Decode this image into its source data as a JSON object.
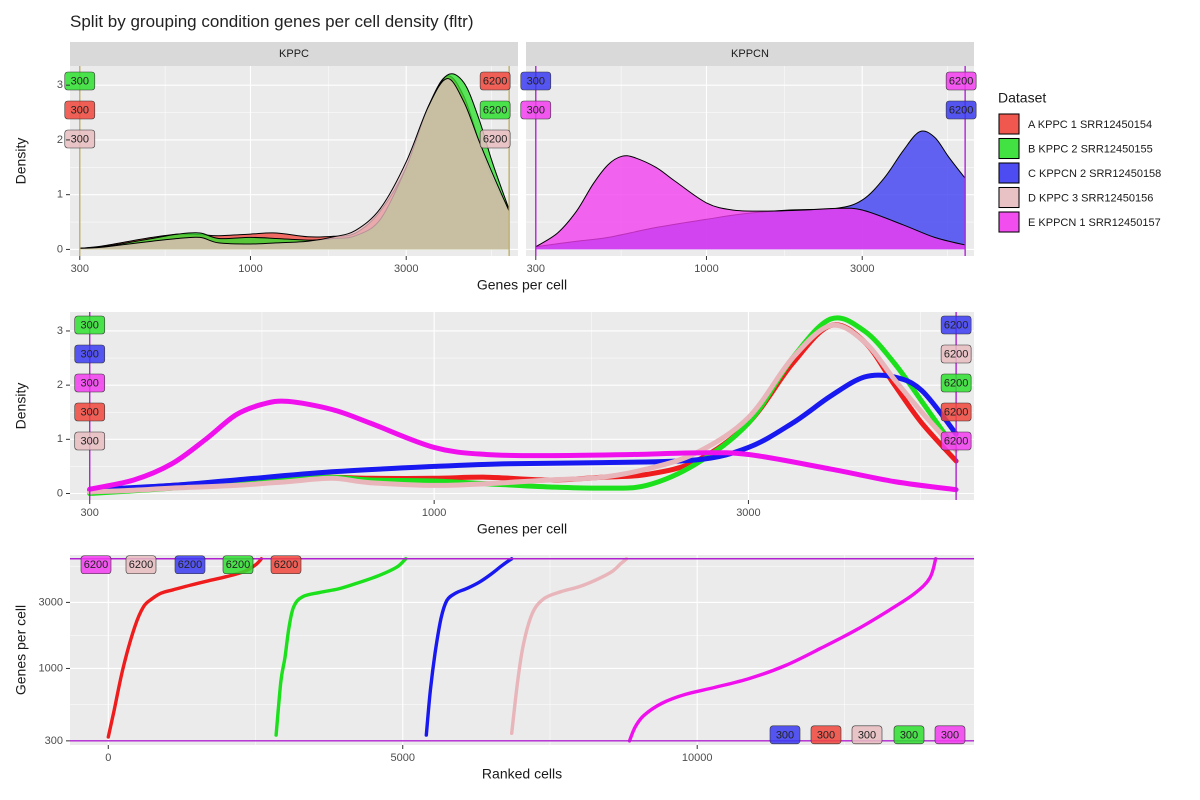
{
  "title": "Split by grouping condition genes per cell density (fltr)",
  "legend": {
    "title": "Dataset",
    "placement": "right",
    "entries": [
      {
        "name": "A KPPC 1 SRR12450154",
        "color": "#F8766D"
      },
      {
        "name": "B KPPC 2 SRR12450155",
        "color": "#00BA38"
      },
      {
        "name": "C KPPCN 2 SRR12450158",
        "color": "#619CFF"
      },
      {
        "name": "D KPPC 3 SRR12450156",
        "color": "#E8C0C4"
      },
      {
        "name": "E KPPCN 1 SRR12450157",
        "color": "#F564E3"
      }
    ]
  },
  "colors": {
    "A": "#F0463C",
    "B": "#2EE02E",
    "C": "#3A3AF2",
    "D": "#E8BDC1",
    "E": "#F23CEE",
    "A_line": "#EE1C1C",
    "B_line": "#1BE01B",
    "C_line": "#1818F0",
    "D_line": "#E8B5BA",
    "E_line": "#F010EE",
    "threshold_kppc": "#BDB06A",
    "threshold_kppcn": "#B023D8",
    "threshold_mid": "#B020D0"
  },
  "chart_data": [
    {
      "type": "area",
      "facets": [
        "KPPC",
        "KPPCN"
      ],
      "x_scale": "log10",
      "xlim": [
        280,
        6600
      ],
      "ylim": [
        -0.12,
        3.35
      ],
      "x_ticks": [
        300,
        1000,
        3000
      ],
      "x_tick_labels": [
        "300",
        "1000",
        "3000"
      ],
      "y_ticks": [
        0,
        1,
        2,
        3
      ],
      "y_tick_labels": [
        "0",
        "1",
        "2",
        "3"
      ],
      "xlabel": "Genes per cell",
      "ylabel": "Density",
      "thresholds": [
        300,
        6200
      ],
      "threshold_labels": [
        "300",
        "6200"
      ],
      "series": [
        {
          "name": "A KPPC 1 SRR12450154",
          "facet": "KPPC",
          "x": [
            300,
            350,
            400,
            500,
            600,
            700,
            800,
            1000,
            1200,
            1500,
            1800,
            2100,
            2500,
            3000,
            3500,
            4000,
            4500,
            5000,
            5500,
            6200
          ],
          "y": [
            0.02,
            0.06,
            0.12,
            0.22,
            0.28,
            0.27,
            0.25,
            0.28,
            0.3,
            0.23,
            0.24,
            0.3,
            0.7,
            1.5,
            2.6,
            3.17,
            2.8,
            2.0,
            1.3,
            0.75
          ]
        },
        {
          "name": "B KPPC 2 SRR12450155",
          "facet": "KPPC",
          "x": [
            300,
            350,
            400,
            500,
            600,
            700,
            800,
            1000,
            1200,
            1500,
            1800,
            2100,
            2500,
            3000,
            3500,
            4000,
            4500,
            5000,
            5500,
            6200
          ],
          "y": [
            0.02,
            0.05,
            0.1,
            0.2,
            0.28,
            0.3,
            0.2,
            0.22,
            0.2,
            0.17,
            0.2,
            0.25,
            0.55,
            1.5,
            2.6,
            3.18,
            3.05,
            2.4,
            1.6,
            0.73
          ]
        },
        {
          "name": "D KPPC 3 SRR12450156",
          "facet": "KPPC",
          "x": [
            300,
            350,
            400,
            500,
            600,
            700,
            800,
            1000,
            1200,
            1500,
            1800,
            2100,
            2500,
            3000,
            3500,
            4000,
            4500,
            5000,
            5500,
            6200
          ],
          "y": [
            0.02,
            0.04,
            0.08,
            0.15,
            0.2,
            0.22,
            0.12,
            0.1,
            0.12,
            0.15,
            0.23,
            0.35,
            0.75,
            1.6,
            2.6,
            3.12,
            2.7,
            2.0,
            1.4,
            0.7
          ]
        },
        {
          "name": "C KPPCN 2 SRR12450158",
          "facet": "KPPCN",
          "x": [
            300,
            400,
            500,
            700,
            1000,
            1300,
            1800,
            2500,
            3000,
            3500,
            4000,
            4500,
            5000,
            5500,
            6200
          ],
          "y": [
            0.05,
            0.15,
            0.22,
            0.4,
            0.55,
            0.65,
            0.72,
            0.75,
            0.9,
            1.3,
            1.8,
            2.15,
            2.05,
            1.7,
            1.3
          ]
        },
        {
          "name": "E KPPCN 1 SRR12450157",
          "facet": "KPPCN",
          "x": [
            300,
            350,
            400,
            450,
            500,
            550,
            600,
            700,
            800,
            1000,
            1200,
            1500,
            2000,
            2500,
            3000,
            4000,
            5000,
            6200
          ],
          "y": [
            0.05,
            0.3,
            0.7,
            1.2,
            1.55,
            1.7,
            1.68,
            1.5,
            1.25,
            0.85,
            0.72,
            0.7,
            0.72,
            0.75,
            0.72,
            0.45,
            0.22,
            0.08
          ]
        }
      ]
    },
    {
      "type": "line",
      "x_scale": "log10",
      "xlim": [
        280,
        6600
      ],
      "ylim": [
        -0.12,
        3.35
      ],
      "x_ticks": [
        300,
        1000,
        3000
      ],
      "x_tick_labels": [
        "300",
        "1000",
        "3000"
      ],
      "y_ticks": [
        0,
        1,
        2,
        3
      ],
      "y_tick_labels": [
        "0",
        "1",
        "2",
        "3"
      ],
      "xlabel": "Genes per cell",
      "ylabel": "Density",
      "thresholds": [
        300,
        6200
      ],
      "threshold_labels": [
        "300",
        "6200"
      ],
      "series": [
        {
          "name": "A KPPC 1 SRR12450154",
          "x": [
            300,
            350,
            400,
            500,
            600,
            700,
            800,
            1000,
            1200,
            1500,
            1800,
            2100,
            2500,
            3000,
            3500,
            4000,
            4500,
            5000,
            5500,
            6200
          ],
          "y": [
            0.05,
            0.1,
            0.15,
            0.22,
            0.28,
            0.3,
            0.28,
            0.28,
            0.3,
            0.25,
            0.3,
            0.35,
            0.6,
            1.3,
            2.4,
            3.1,
            2.8,
            2.0,
            1.3,
            0.6
          ]
        },
        {
          "name": "B KPPC 2 SRR12450155",
          "x": [
            300,
            350,
            400,
            500,
            600,
            700,
            800,
            1000,
            1200,
            1500,
            1800,
            2100,
            2500,
            3000,
            3500,
            4000,
            4500,
            5000,
            5500,
            6200
          ],
          "y": [
            0.0,
            0.05,
            0.1,
            0.2,
            0.27,
            0.3,
            0.25,
            0.23,
            0.18,
            0.12,
            0.1,
            0.15,
            0.55,
            1.3,
            2.5,
            3.22,
            3.0,
            2.4,
            1.7,
            0.8
          ]
        },
        {
          "name": "C KPPCN 2 SRR12450158",
          "x": [
            300,
            400,
            500,
            700,
            1000,
            1300,
            1800,
            2500,
            3000,
            3500,
            4000,
            4500,
            5000,
            5500,
            6200
          ],
          "y": [
            0.07,
            0.15,
            0.25,
            0.4,
            0.5,
            0.55,
            0.57,
            0.62,
            0.85,
            1.3,
            1.8,
            2.15,
            2.15,
            1.9,
            1.1
          ]
        },
        {
          "name": "D KPPC 3 SRR12450156",
          "x": [
            300,
            350,
            400,
            500,
            600,
            700,
            800,
            1000,
            1200,
            1500,
            1800,
            2100,
            2500,
            3000,
            3500,
            4000,
            4500,
            5000,
            5500,
            6200
          ],
          "y": [
            0.03,
            0.06,
            0.1,
            0.15,
            0.22,
            0.28,
            0.2,
            0.15,
            0.18,
            0.25,
            0.3,
            0.45,
            0.75,
            1.4,
            2.5,
            3.1,
            2.8,
            2.1,
            1.5,
            0.8
          ]
        },
        {
          "name": "E KPPCN 1 SRR12450157",
          "x": [
            300,
            350,
            400,
            450,
            500,
            550,
            600,
            700,
            800,
            1000,
            1200,
            1500,
            2000,
            2500,
            3000,
            4000,
            5000,
            6200
          ],
          "y": [
            0.08,
            0.25,
            0.55,
            1.0,
            1.45,
            1.65,
            1.7,
            1.55,
            1.3,
            0.85,
            0.72,
            0.7,
            0.72,
            0.75,
            0.72,
            0.45,
            0.22,
            0.07
          ]
        }
      ]
    },
    {
      "type": "line",
      "y_scale": "log10",
      "xlim": [
        -650,
        14700
      ],
      "ylim": [
        280,
        6600
      ],
      "x_ticks": [
        0,
        5000,
        10000
      ],
      "x_tick_labels": [
        "0",
        "5000",
        "10000"
      ],
      "y_ticks": [
        300,
        1000,
        3000
      ],
      "y_tick_labels": [
        "300",
        "1000",
        "3000"
      ],
      "xlabel": "Ranked cells",
      "ylabel": "Genes per cell",
      "thresholds": [
        300,
        6200
      ],
      "threshold_labels": [
        "300",
        "6200"
      ],
      "series": [
        {
          "name": "A KPPC 1 SRR12450154",
          "x": [
            0,
            100,
            250,
            450,
            600,
            750,
            900,
            1100,
            1400,
            1700,
            2000,
            2300,
            2500,
            2600
          ],
          "y": [
            320,
            500,
            1000,
            2000,
            2800,
            3200,
            3500,
            3700,
            4000,
            4300,
            4600,
            5000,
            5600,
            6200
          ]
        },
        {
          "name": "B KPPC 2 SRR12450155",
          "x": [
            2850,
            2930,
            3000,
            3070,
            3150,
            3300,
            3600,
            3900,
            4200,
            4600,
            4900,
            5050
          ],
          "y": [
            330,
            800,
            1200,
            2000,
            2800,
            3300,
            3550,
            3750,
            4100,
            4700,
            5400,
            6200
          ]
        },
        {
          "name": "C KPPCN 2 SRR12450158",
          "x": [
            5400,
            5470,
            5550,
            5650,
            5750,
            5900,
            6100,
            6300,
            6500,
            6700,
            6850
          ],
          "y": [
            330,
            700,
            1300,
            2300,
            3100,
            3500,
            3800,
            4200,
            4800,
            5600,
            6200
          ]
        },
        {
          "name": "D KPPC 3 SRR12450156",
          "x": [
            6850,
            6950,
            7050,
            7200,
            7400,
            7700,
            8000,
            8300,
            8550,
            8700,
            8800
          ],
          "y": [
            340,
            800,
            1500,
            2500,
            3200,
            3600,
            3900,
            4400,
            5000,
            5700,
            6200
          ]
        },
        {
          "name": "E KPPCN 1 SRR12450157",
          "x": [
            8850,
            8950,
            9100,
            9400,
            9800,
            10300,
            10900,
            11500,
            12100,
            12700,
            13300,
            13700,
            13950,
            14050
          ],
          "y": [
            300,
            380,
            460,
            560,
            650,
            730,
            850,
            1050,
            1400,
            1900,
            2700,
            3500,
            4500,
            6200
          ]
        }
      ]
    }
  ]
}
